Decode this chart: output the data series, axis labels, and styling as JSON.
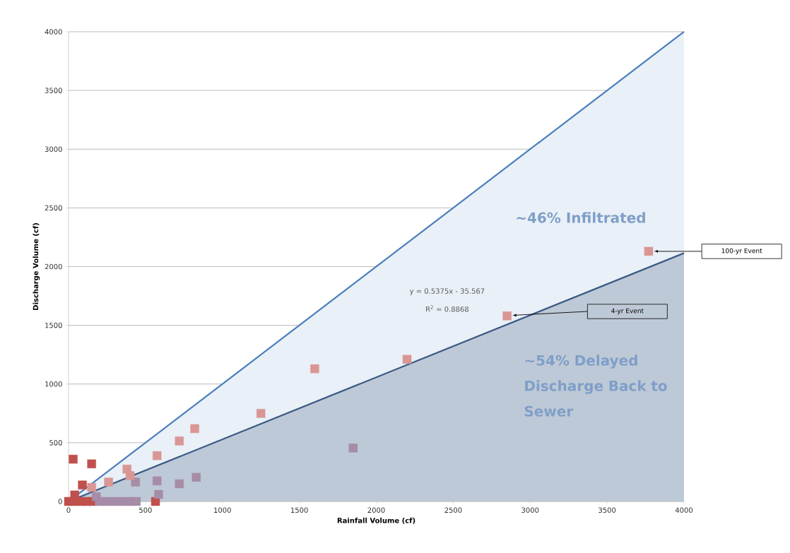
{
  "chart_data": {
    "type": "scatter",
    "xlabel": "Rainfall Volume (cf)",
    "ylabel": "Discharge Volume (cf)",
    "xlim": [
      0,
      4000
    ],
    "ylim": [
      0,
      4000
    ],
    "xticks": [
      0,
      500,
      1000,
      1500,
      2000,
      2500,
      3000,
      3500,
      4000
    ],
    "yticks": [
      0,
      500,
      1000,
      1500,
      2000,
      2500,
      3000,
      3500,
      4000
    ],
    "grid": "y",
    "series": [
      {
        "type": "area",
        "color": "#4a7ebb",
        "x": [
          0,
          4000
        ],
        "values": [
          0,
          4000
        ]
      },
      {
        "type": "area",
        "color": "#3b5a85",
        "x": [
          0,
          4000
        ],
        "values": [
          0,
          2115
        ]
      },
      {
        "marker": "square",
        "color": "#c0504d",
        "x": [
          0,
          30,
          80,
          120,
          160,
          565,
          30,
          150,
          90,
          40
        ],
        "values": [
          0,
          0,
          0,
          0,
          0,
          0,
          360,
          320,
          140,
          55
        ]
      },
      {
        "marker": "square",
        "color": "#a68ca6",
        "x": [
          200,
          250,
          300,
          350,
          400,
          440,
          180,
          585,
          435,
          575,
          720,
          830,
          1850
        ],
        "values": [
          0,
          0,
          0,
          0,
          0,
          0,
          40,
          60,
          165,
          175,
          150,
          205,
          455
        ]
      },
      {
        "marker": "square",
        "color": "#d99694",
        "x": [
          150,
          260,
          380,
          400,
          575,
          720,
          820,
          1250,
          1600,
          2200,
          2850,
          3770
        ],
        "values": [
          120,
          165,
          275,
          220,
          390,
          515,
          620,
          750,
          1130,
          1210,
          1580,
          2130
        ]
      }
    ],
    "annotations": [
      "y = 0.5375x - 35.567",
      "R$^{2}$ = 0.8868",
      "~46% Infiltrated",
      "~54% Delayed Discharge Back to Sewer",
      "100-yr Event",
      "4-yr Event"
    ]
  }
}
